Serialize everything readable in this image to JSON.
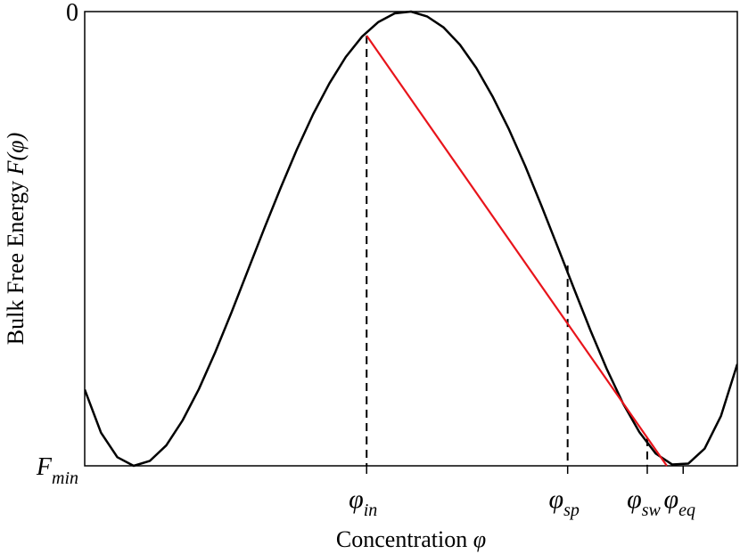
{
  "chart_data": {
    "type": "line",
    "x_label": {
      "text": "Concentration",
      "symbol": "φ"
    },
    "y_label": {
      "text": "Bulk Free Energy",
      "symbol": "F(φ)"
    },
    "xlim": [
      0,
      1
    ],
    "ylim": [
      -1,
      0
    ],
    "yticks": [
      {
        "value": 0,
        "label": "0"
      },
      {
        "value": -1,
        "label": "F",
        "sub": "min"
      }
    ],
    "xticks": [
      {
        "value": 0.432,
        "label": "φ",
        "sub": "in"
      },
      {
        "value": 0.74,
        "label": "φ",
        "sub": "sp"
      },
      {
        "value": 0.862,
        "label": "φ",
        "sub": "sw"
      },
      {
        "value": 0.917,
        "label": "φ",
        "sub": "eq"
      }
    ],
    "guides": [
      {
        "x": 0.432,
        "y": -0.053
      },
      {
        "x": 0.74,
        "y": -0.559
      },
      {
        "x": 0.862,
        "y": -0.939
      }
    ],
    "grid": false,
    "series": [
      {
        "color": "#000000",
        "x": [
          0,
          0.025,
          0.05,
          0.075,
          0.1,
          0.125,
          0.15,
          0.175,
          0.2,
          0.225,
          0.25,
          0.275,
          0.3,
          0.325,
          0.35,
          0.375,
          0.4,
          0.425,
          0.45,
          0.475,
          0.5,
          0.525,
          0.55,
          0.575,
          0.6,
          0.625,
          0.65,
          0.675,
          0.7,
          0.725,
          0.75,
          0.775,
          0.8,
          0.825,
          0.85,
          0.875,
          0.9,
          0.925,
          0.95,
          0.975,
          1
        ],
        "values": [
          -0.832,
          -0.927,
          -0.981,
          -1,
          -0.989,
          -0.955,
          -0.9,
          -0.831,
          -0.75,
          -0.662,
          -0.57,
          -0.478,
          -0.389,
          -0.304,
          -0.226,
          -0.158,
          -0.1,
          -0.055,
          -0.023,
          -0.004,
          0,
          -0.011,
          -0.035,
          -0.073,
          -0.124,
          -0.187,
          -0.259,
          -0.34,
          -0.428,
          -0.519,
          -0.611,
          -0.702,
          -0.787,
          -0.863,
          -0.926,
          -0.973,
          -0.997,
          -0.995,
          -0.962,
          -0.89,
          -0.776
        ]
      },
      {
        "color": "#e8141b",
        "x": [
          0.432,
          0.892
        ],
        "values": [
          -0.053,
          -1
        ]
      }
    ]
  }
}
